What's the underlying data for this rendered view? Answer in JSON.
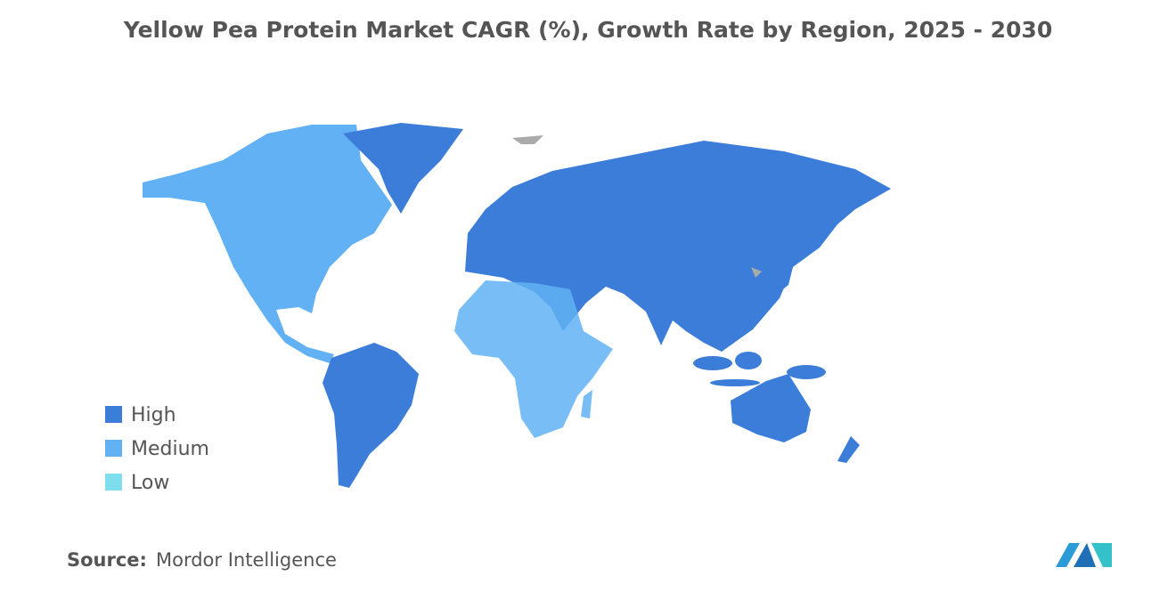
{
  "title": "Yellow Pea Protein Market CAGR (%), Growth Rate by Region, 2025 - 2030",
  "legend": [
    {
      "label": "High",
      "color": "#3b7dd8"
    },
    {
      "label": "Medium",
      "color": "#62b1f5"
    },
    {
      "label": "Low",
      "color": "#7fdeee"
    }
  ],
  "source": {
    "label": "Source:",
    "text": "Mordor Intelligence"
  }
}
